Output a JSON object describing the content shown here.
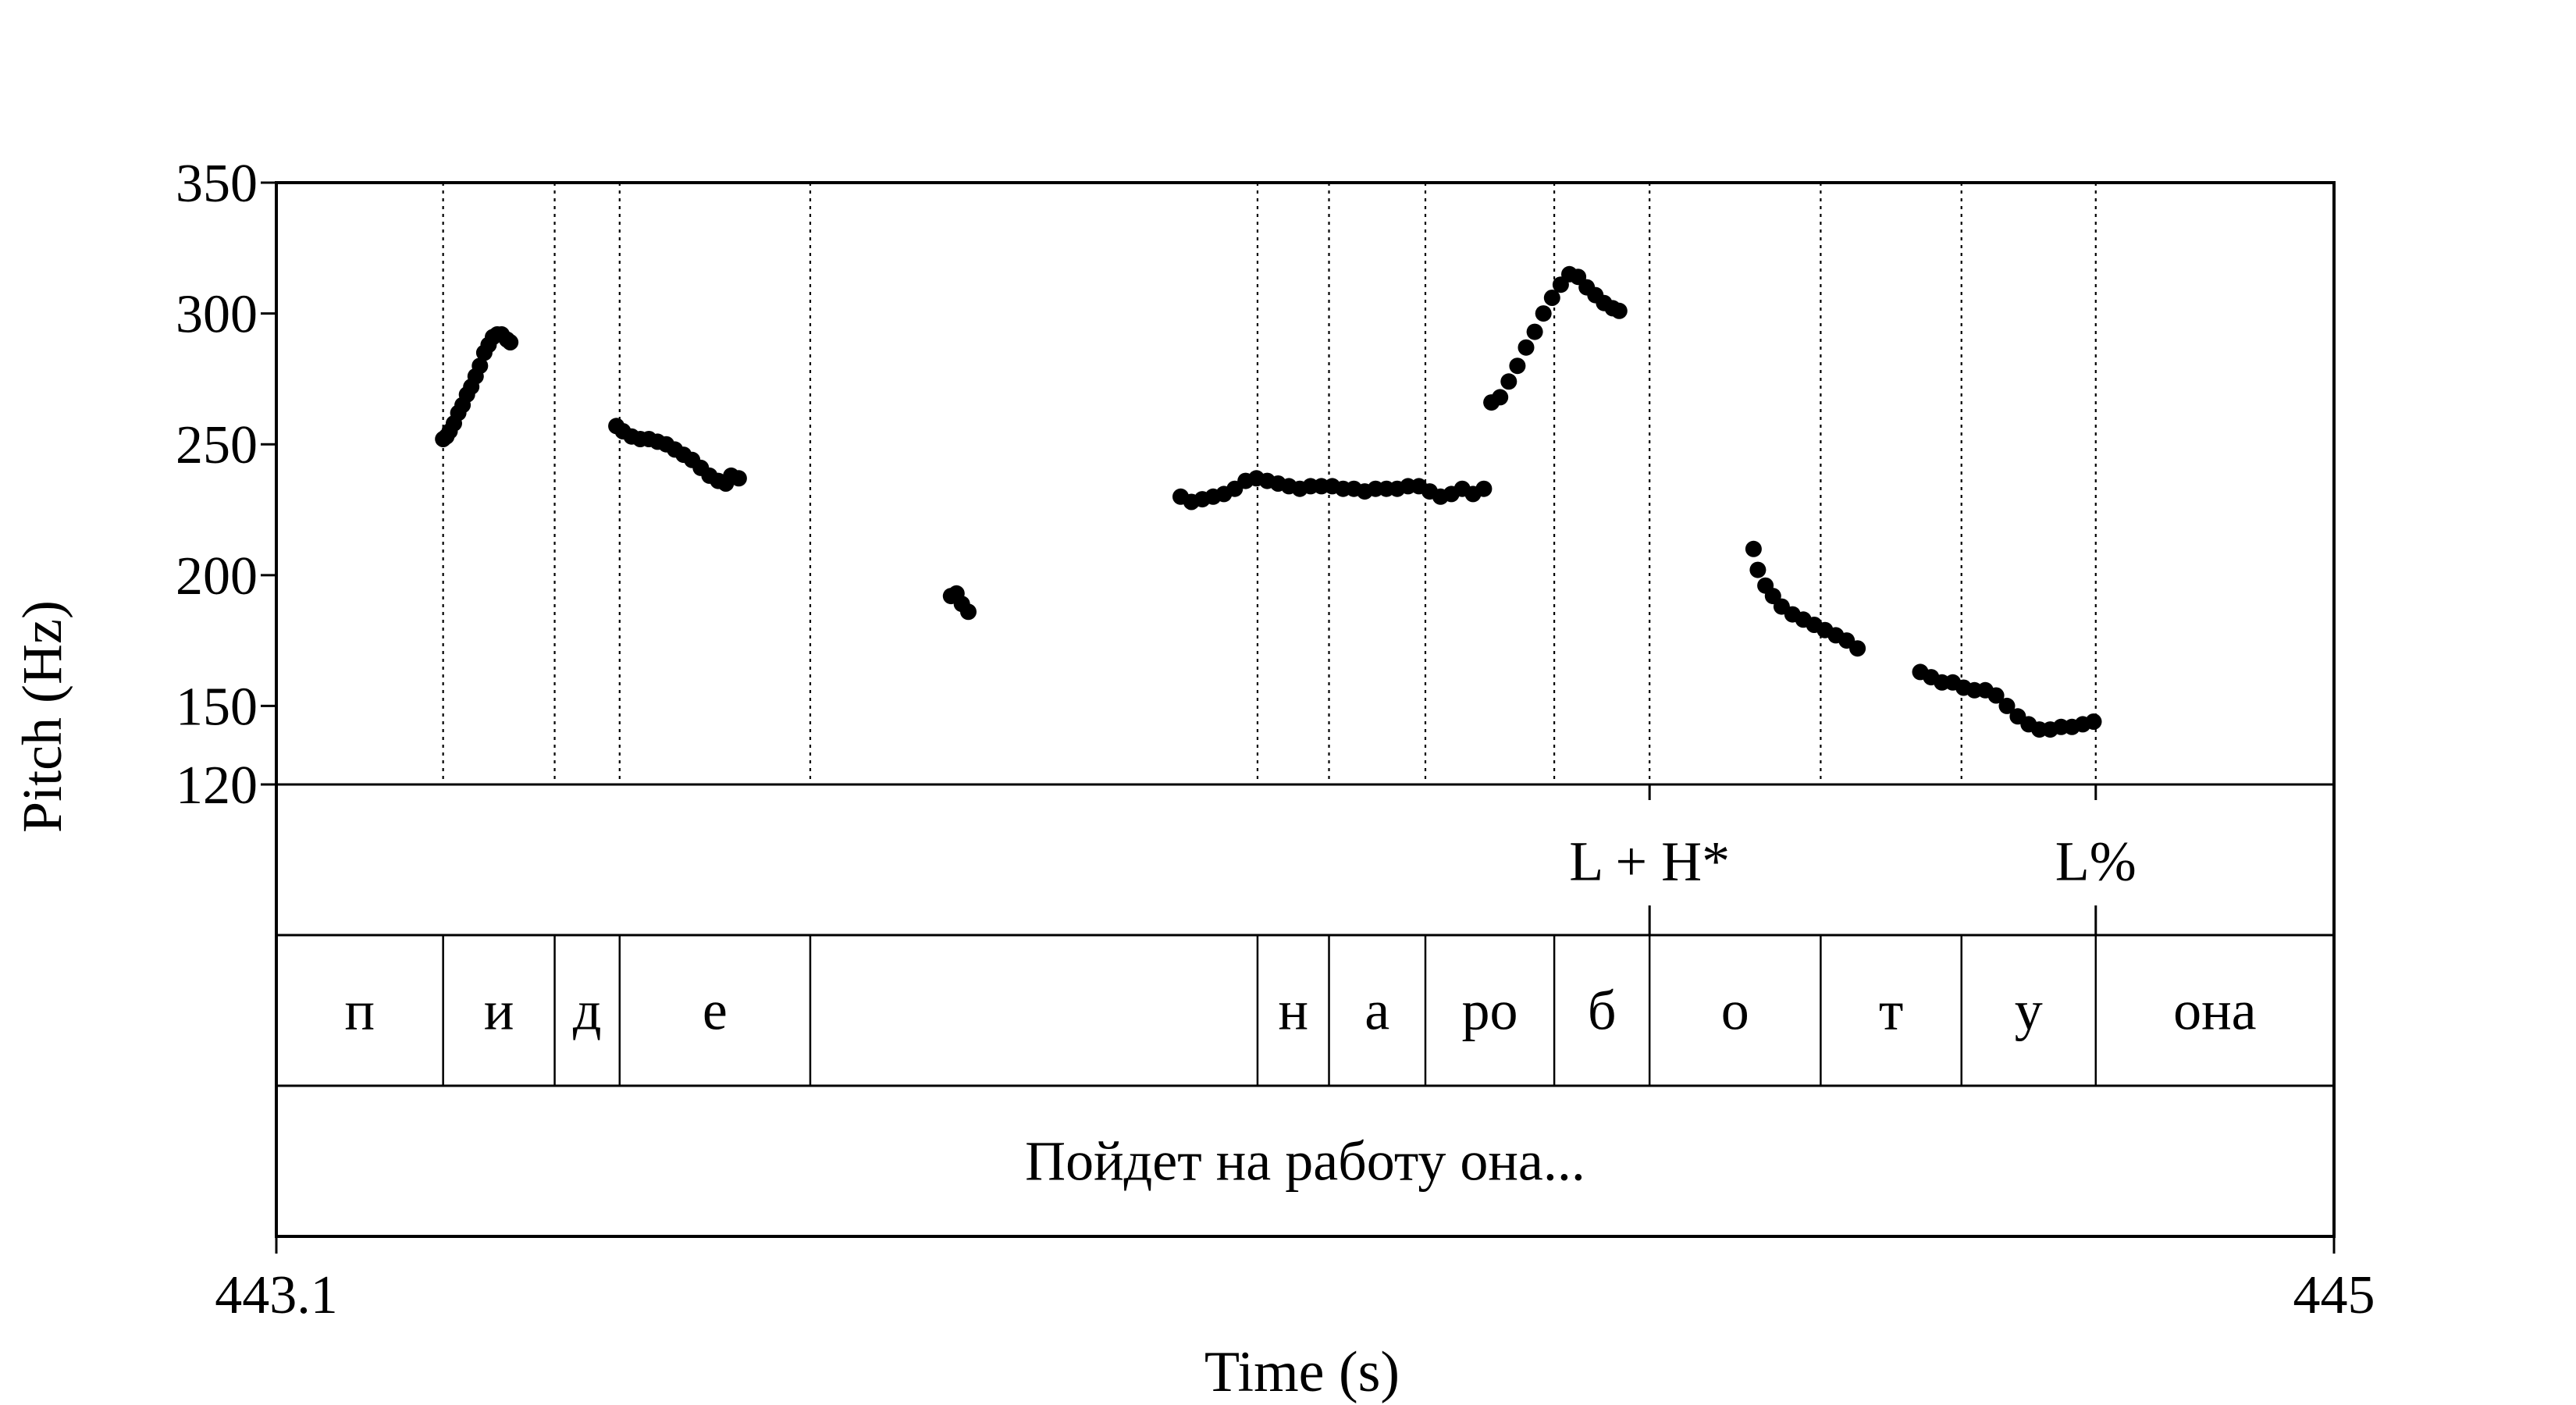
{
  "chart_data": {
    "type": "scatter",
    "title": "",
    "xlabel": "Time (s)",
    "ylabel": "Pitch (Hz)",
    "xlim": [
      443.1,
      445
    ],
    "ylim": [
      120,
      350
    ],
    "x_tick_labels": [
      "443.1",
      "445"
    ],
    "y_ticks": [
      120,
      150,
      200,
      250,
      300,
      350
    ],
    "y_tick_labels": [
      "120",
      "150",
      "200",
      "250",
      "300",
      "350"
    ],
    "grid": false,
    "legend": "none",
    "point_color": "#000000",
    "series": [
      {
        "points": [
          [
            443.254,
            252
          ],
          [
            443.257,
            253
          ],
          [
            443.26,
            255
          ],
          [
            443.264,
            258
          ],
          [
            443.268,
            262
          ],
          [
            443.272,
            265
          ],
          [
            443.276,
            269
          ],
          [
            443.28,
            272
          ],
          [
            443.284,
            276
          ],
          [
            443.288,
            280
          ],
          [
            443.292,
            285
          ],
          [
            443.296,
            288
          ],
          [
            443.3,
            291
          ],
          [
            443.304,
            292
          ],
          [
            443.308,
            292
          ],
          [
            443.313,
            290
          ],
          [
            443.316,
            289
          ],
          [
            443.414,
            257
          ],
          [
            443.42,
            255
          ],
          [
            443.428,
            253
          ],
          [
            443.436,
            252
          ],
          [
            443.444,
            252
          ],
          [
            443.452,
            251
          ],
          [
            443.46,
            250
          ],
          [
            443.468,
            248
          ],
          [
            443.476,
            246
          ],
          [
            443.484,
            244
          ],
          [
            443.492,
            241
          ],
          [
            443.5,
            238
          ],
          [
            443.508,
            236
          ],
          [
            443.515,
            235
          ],
          [
            443.52,
            238
          ],
          [
            443.527,
            237
          ],
          [
            443.723,
            192
          ],
          [
            443.728,
            193
          ],
          [
            443.733,
            189
          ],
          [
            443.739,
            186
          ],
          [
            443.935,
            230
          ],
          [
            443.945,
            228
          ],
          [
            443.955,
            229
          ],
          [
            443.965,
            230
          ],
          [
            443.975,
            231
          ],
          [
            443.985,
            233
          ],
          [
            443.995,
            236
          ],
          [
            444.005,
            237
          ],
          [
            444.015,
            236
          ],
          [
            444.025,
            235
          ],
          [
            444.035,
            234
          ],
          [
            444.045,
            233
          ],
          [
            444.055,
            234
          ],
          [
            444.065,
            234
          ],
          [
            444.075,
            234
          ],
          [
            444.085,
            233
          ],
          [
            444.095,
            233
          ],
          [
            444.105,
            232
          ],
          [
            444.115,
            233
          ],
          [
            444.125,
            233
          ],
          [
            444.135,
            233
          ],
          [
            444.145,
            234
          ],
          [
            444.155,
            234
          ],
          [
            444.165,
            232
          ],
          [
            444.175,
            230
          ],
          [
            444.185,
            231
          ],
          [
            444.195,
            233
          ],
          [
            444.205,
            231
          ],
          [
            444.215,
            233
          ],
          [
            444.222,
            266
          ],
          [
            444.23,
            268
          ],
          [
            444.238,
            274
          ],
          [
            444.246,
            280
          ],
          [
            444.254,
            287
          ],
          [
            444.262,
            293
          ],
          [
            444.27,
            300
          ],
          [
            444.278,
            306
          ],
          [
            444.286,
            311
          ],
          [
            444.294,
            315
          ],
          [
            444.302,
            314
          ],
          [
            444.31,
            310
          ],
          [
            444.318,
            307
          ],
          [
            444.326,
            304
          ],
          [
            444.334,
            302
          ],
          [
            444.34,
            301
          ],
          [
            444.464,
            210
          ],
          [
            444.468,
            202
          ],
          [
            444.475,
            196
          ],
          [
            444.482,
            192
          ],
          [
            444.49,
            188
          ],
          [
            444.5,
            185
          ],
          [
            444.51,
            183
          ],
          [
            444.52,
            181
          ],
          [
            444.53,
            179
          ],
          [
            444.54,
            177
          ],
          [
            444.55,
            175
          ],
          [
            444.56,
            172
          ],
          [
            444.618,
            163
          ],
          [
            444.628,
            161
          ],
          [
            444.638,
            159
          ],
          [
            444.648,
            159
          ],
          [
            444.658,
            157
          ],
          [
            444.668,
            156
          ],
          [
            444.678,
            156
          ],
          [
            444.688,
            154
          ],
          [
            444.698,
            150
          ],
          [
            444.708,
            146
          ],
          [
            444.718,
            143
          ],
          [
            444.728,
            141
          ],
          [
            444.738,
            141
          ],
          [
            444.748,
            142
          ],
          [
            444.758,
            142
          ],
          [
            444.768,
            143
          ],
          [
            444.778,
            144
          ]
        ]
      }
    ],
    "segment_boundaries": [
      443.254,
      443.357,
      443.417,
      443.593,
      444.006,
      444.072,
      444.161,
      444.28,
      444.368,
      444.526,
      444.656,
      444.78
    ],
    "tiers": [
      {
        "marks": [
          {
            "t": 444.368,
            "label": "L + H*"
          },
          {
            "t": 444.78,
            "label": "L%"
          }
        ]
      },
      {
        "segments": [
          {
            "start": 443.1,
            "end": 443.254,
            "label": "п"
          },
          {
            "start": 443.254,
            "end": 443.357,
            "label": "и"
          },
          {
            "start": 443.357,
            "end": 443.417,
            "label": "д"
          },
          {
            "start": 443.417,
            "end": 443.593,
            "label": "е"
          },
          {
            "start": 443.593,
            "end": 444.006,
            "label": ""
          },
          {
            "start": 444.006,
            "end": 444.072,
            "label": "н"
          },
          {
            "start": 444.072,
            "end": 444.161,
            "label": "а"
          },
          {
            "start": 444.161,
            "end": 444.28,
            "label": "ро"
          },
          {
            "start": 444.28,
            "end": 444.368,
            "label": "б"
          },
          {
            "start": 444.368,
            "end": 444.526,
            "label": "о"
          },
          {
            "start": 444.526,
            "end": 444.656,
            "label": "т"
          },
          {
            "start": 444.656,
            "end": 444.78,
            "label": "у"
          },
          {
            "start": 444.78,
            "end": 445.0,
            "label": "она"
          }
        ]
      },
      {
        "segments": [
          {
            "start": 443.1,
            "end": 445.0,
            "label": "Пойдет на работу она..."
          }
        ]
      }
    ]
  }
}
